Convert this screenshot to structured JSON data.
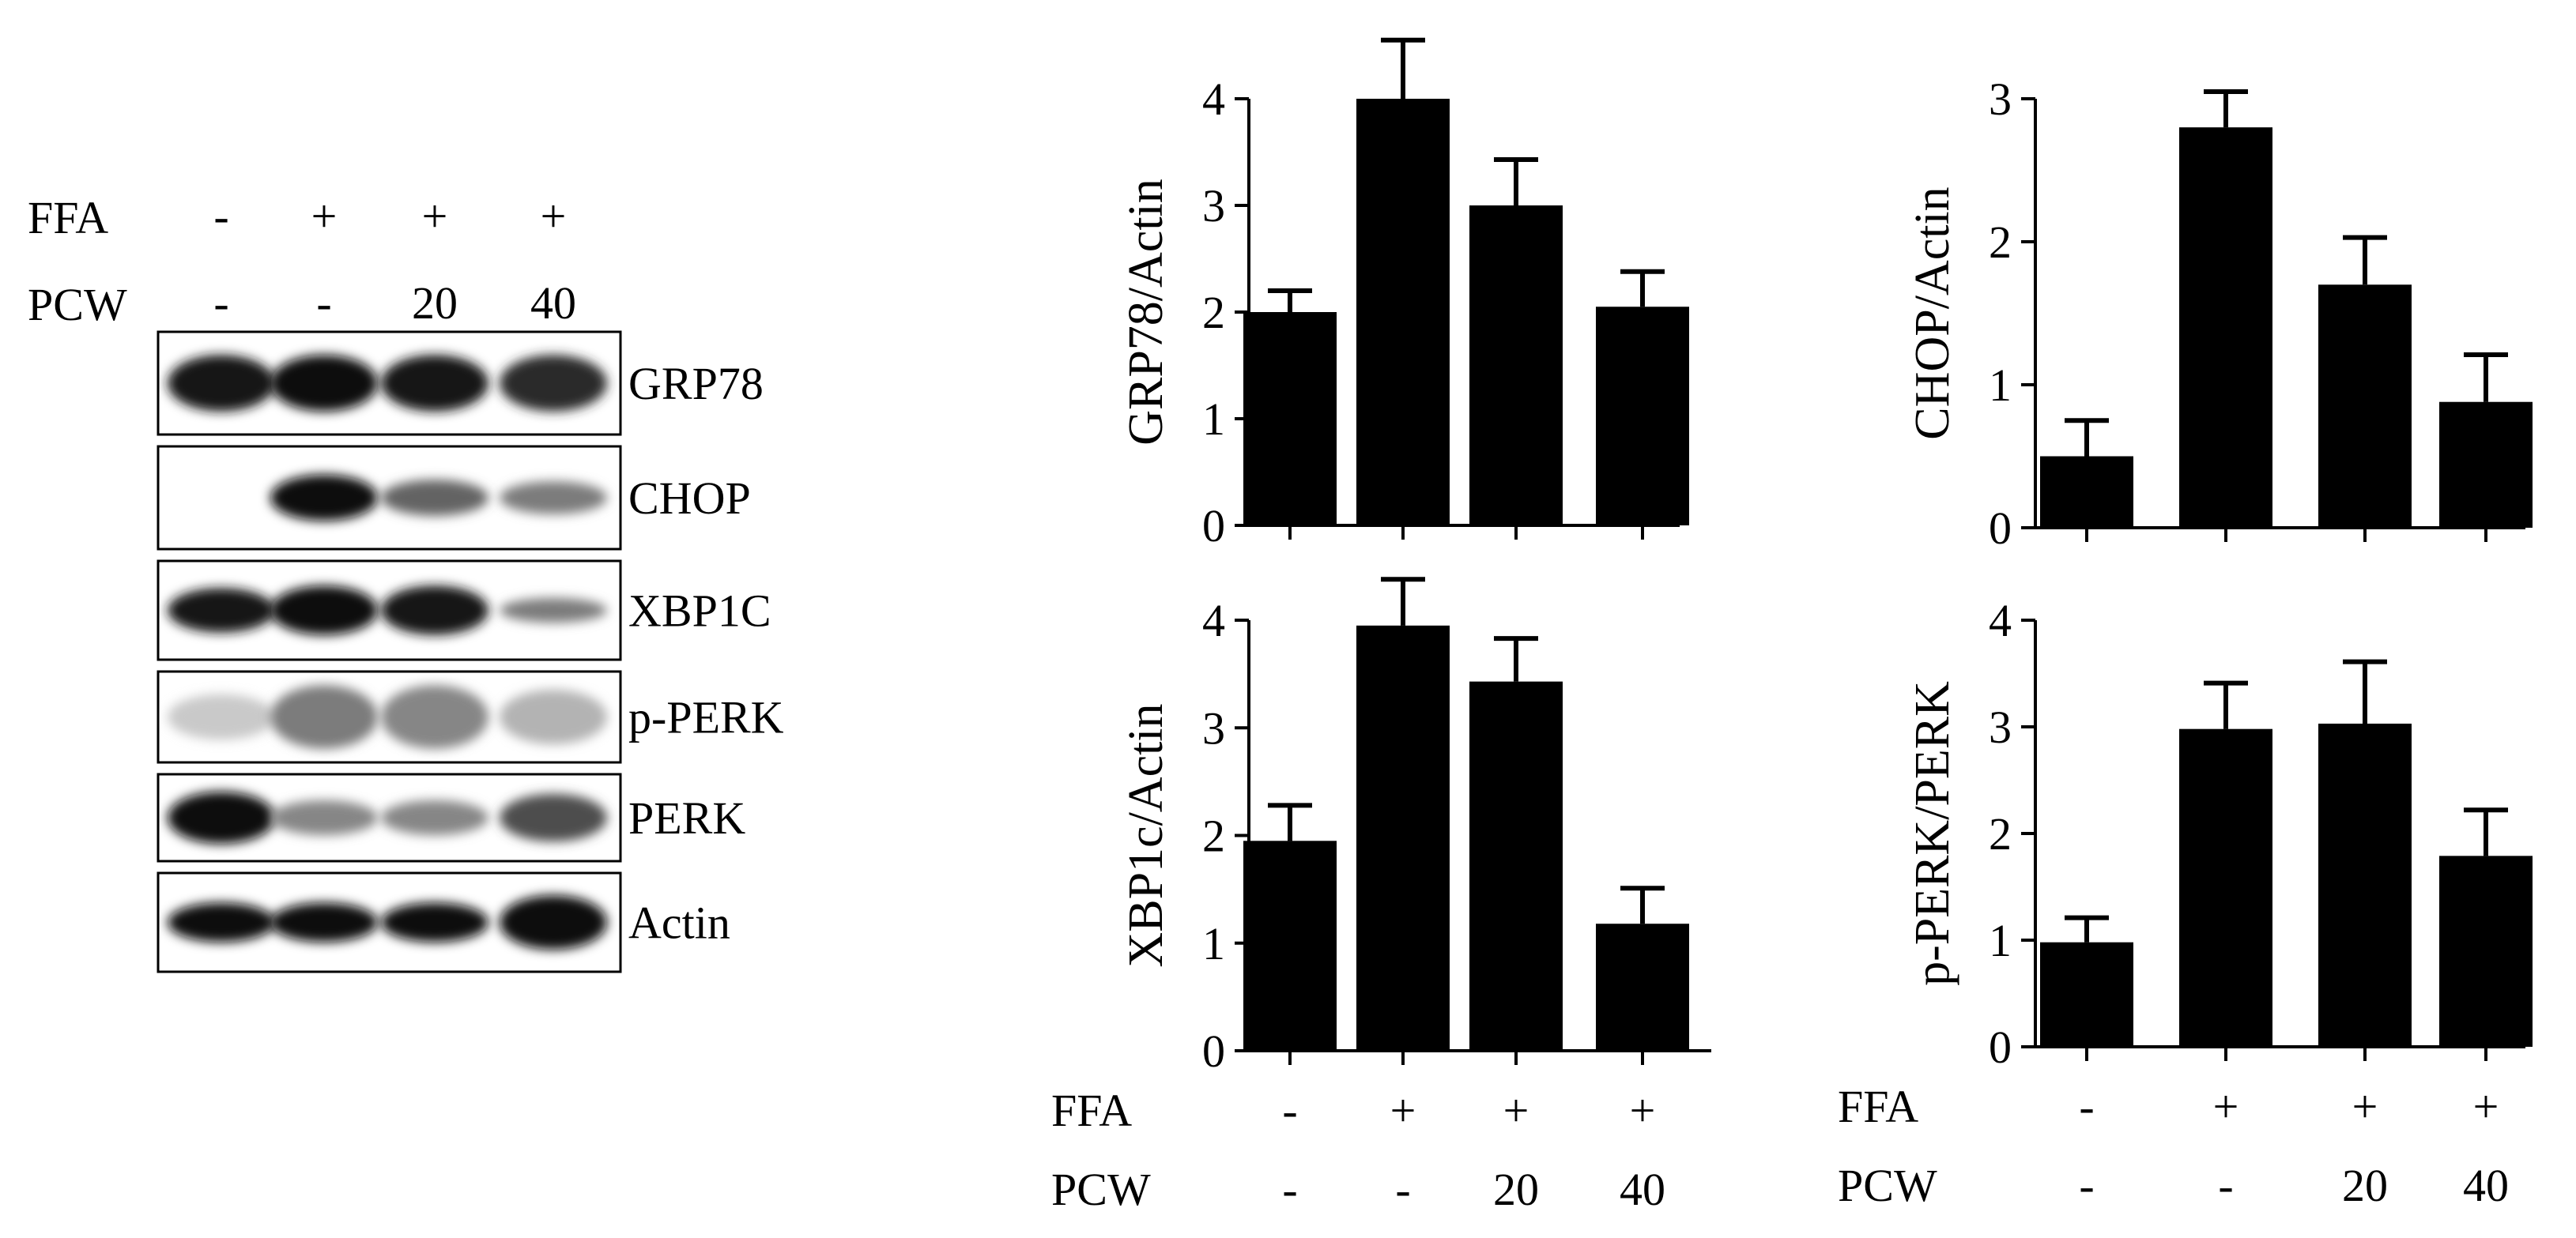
{
  "blot": {
    "treatment_rows": [
      {
        "label": "FFA",
        "values": [
          "-",
          "+",
          "+",
          "+"
        ]
      },
      {
        "label": "PCW",
        "values": [
          "-",
          "-",
          "20",
          "40"
        ]
      }
    ],
    "bands": [
      {
        "label": "GRP78",
        "intensity": [
          0.95,
          1.0,
          0.95,
          0.85
        ],
        "band_height": [
          0.55,
          0.55,
          0.55,
          0.55
        ]
      },
      {
        "label": "CHOP",
        "intensity": [
          0.03,
          1.0,
          0.6,
          0.5
        ],
        "band_height": [
          0.0,
          0.45,
          0.35,
          0.32
        ]
      },
      {
        "label": "XBP1C",
        "intensity": [
          0.95,
          1.0,
          0.95,
          0.5
        ],
        "band_height": [
          0.45,
          0.5,
          0.5,
          0.25
        ]
      },
      {
        "label": "p-PERK",
        "intensity": [
          0.15,
          0.5,
          0.45,
          0.25
        ],
        "band_height": [
          0.5,
          0.7,
          0.7,
          0.6
        ]
      },
      {
        "label": "PERK",
        "intensity": [
          1.0,
          0.45,
          0.45,
          0.7
        ],
        "band_height": [
          0.6,
          0.4,
          0.4,
          0.55
        ]
      },
      {
        "label": "Actin",
        "intensity": [
          1.0,
          1.0,
          1.0,
          1.0
        ],
        "band_height": [
          0.4,
          0.4,
          0.4,
          0.55
        ]
      }
    ]
  },
  "chart_data": [
    {
      "type": "bar",
      "ylabel": "GRP78/Actin",
      "categories": [
        "1",
        "2",
        "3",
        "4"
      ],
      "values": [
        2.0,
        4.0,
        3.0,
        2.05
      ],
      "errors": [
        0.2,
        0.55,
        0.43,
        0.33
      ],
      "ylim": [
        0,
        4
      ],
      "yticks": [
        "0",
        "1",
        "2",
        "3",
        "4"
      ],
      "show_x_labels": false,
      "x_label_rows": [
        {
          "label": "FFA",
          "values": [
            "-",
            "+",
            "+",
            "+"
          ]
        },
        {
          "label": "PCW",
          "values": [
            "-",
            "-",
            "20",
            "40"
          ]
        }
      ]
    },
    {
      "type": "bar",
      "ylabel": "CHOP/Actin",
      "categories": [
        "1",
        "2",
        "3",
        "4"
      ],
      "values": [
        0.5,
        2.8,
        1.7,
        0.88
      ],
      "errors": [
        0.25,
        0.25,
        0.33,
        0.33
      ],
      "ylim": [
        0,
        3
      ],
      "yticks": [
        "0",
        "1",
        "2",
        "3"
      ],
      "show_x_labels": false,
      "x_label_rows": [
        {
          "label": "FFA",
          "values": [
            "-",
            "+",
            "+",
            "+"
          ]
        },
        {
          "label": "PCW",
          "values": [
            "-",
            "-",
            "20",
            "40"
          ]
        }
      ]
    },
    {
      "type": "bar",
      "ylabel": "XBP1c/Actin",
      "categories": [
        "1",
        "2",
        "3",
        "4"
      ],
      "values": [
        1.95,
        3.95,
        3.43,
        1.18
      ],
      "errors": [
        0.33,
        0.43,
        0.4,
        0.33
      ],
      "ylim": [
        0,
        4
      ],
      "yticks": [
        "0",
        "1",
        "2",
        "3",
        "4"
      ],
      "show_x_labels": true,
      "x_label_rows": [
        {
          "label": "FFA",
          "values": [
            "-",
            "+",
            "+",
            "+"
          ]
        },
        {
          "label": "PCW",
          "values": [
            "-",
            "-",
            "20",
            "40"
          ]
        }
      ]
    },
    {
      "type": "bar",
      "ylabel": "p-PERK/PERK",
      "categories": [
        "1",
        "2",
        "3",
        "4"
      ],
      "values": [
        0.98,
        2.98,
        3.03,
        1.79
      ],
      "errors": [
        0.23,
        0.43,
        0.58,
        0.43
      ],
      "ylim": [
        0,
        4
      ],
      "yticks": [
        "0",
        "1",
        "2",
        "3",
        "4"
      ],
      "show_x_labels": true,
      "x_label_rows": [
        {
          "label": "FFA",
          "values": [
            "-",
            "+",
            "+",
            "+"
          ]
        },
        {
          "label": "PCW",
          "values": [
            "-",
            "-",
            "20",
            "40"
          ]
        }
      ]
    }
  ]
}
